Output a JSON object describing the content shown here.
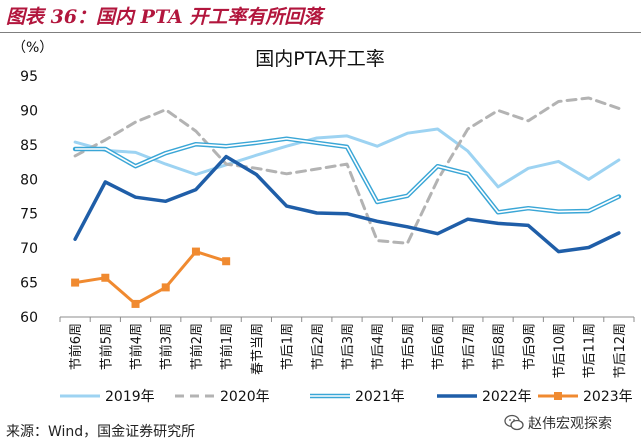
{
  "header": {
    "title": "图表 36：国内 PTA 开工率有所回落"
  },
  "footer": {
    "source": "来源：Wind，国金证券研究所"
  },
  "watermark": {
    "text": "赵伟宏观探索",
    "icon": "wechat-icon"
  },
  "colors": {
    "title": "#b2163d",
    "series_2019": "#9dd3f2",
    "series_2020": "#b3b3b3",
    "series_2021": "#3aa6d6",
    "series_2022": "#1f5ea8",
    "series_2023": "#f08a30"
  },
  "chart_data": {
    "type": "line",
    "title": "国内PTA开工率",
    "ylabel": "（%）",
    "ylim": [
      60,
      95
    ],
    "yticks": [
      60,
      65,
      70,
      75,
      80,
      85,
      90,
      95
    ],
    "grid": false,
    "legend_position": "bottom",
    "categories": [
      "节前6周",
      "节前5周",
      "节前4周",
      "节前3周",
      "节前2周",
      "节前1周",
      "春节当周",
      "节后1周",
      "节后2周",
      "节后3周",
      "节后4周",
      "节后5周",
      "节后6周",
      "节后7周",
      "节后8周",
      "节后9周",
      "节后10周",
      "节后11周",
      "节后12周"
    ],
    "series": [
      {
        "name": "2019年",
        "style": "solid-light",
        "values": [
          85.4,
          84.2,
          83.9,
          82.2,
          80.7,
          82.1,
          83.5,
          84.8,
          86.0,
          86.3,
          84.8,
          86.7,
          87.3,
          84.1,
          78.9,
          81.6,
          82.6,
          80.0,
          82.8
        ]
      },
      {
        "name": "2020年",
        "style": "dashed",
        "values": [
          83.4,
          85.7,
          88.3,
          90.1,
          87.0,
          82.2,
          81.6,
          80.8,
          81.5,
          82.2,
          71.1,
          70.7,
          79.9,
          87.3,
          90.0,
          88.5,
          91.3,
          91.8,
          90.3
        ]
      },
      {
        "name": "2021年",
        "style": "double",
        "values": [
          84.4,
          84.4,
          81.9,
          83.8,
          85.1,
          84.8,
          85.3,
          85.9,
          85.3,
          84.7,
          76.7,
          77.6,
          81.9,
          80.8,
          75.2,
          75.8,
          75.3,
          75.4,
          77.5
        ]
      },
      {
        "name": "2022年",
        "style": "thick",
        "values": [
          71.3,
          79.6,
          77.4,
          76.8,
          78.5,
          83.3,
          80.7,
          76.1,
          75.1,
          75.0,
          73.9,
          73.1,
          72.1,
          74.2,
          73.6,
          73.3,
          69.5,
          70.1,
          72.2
        ]
      },
      {
        "name": "2023年",
        "style": "marker",
        "values": [
          65.0,
          65.7,
          61.9,
          64.3,
          69.5,
          68.1,
          null,
          null,
          null,
          null,
          null,
          null,
          null,
          null,
          null,
          null,
          null,
          null,
          null
        ]
      }
    ]
  }
}
